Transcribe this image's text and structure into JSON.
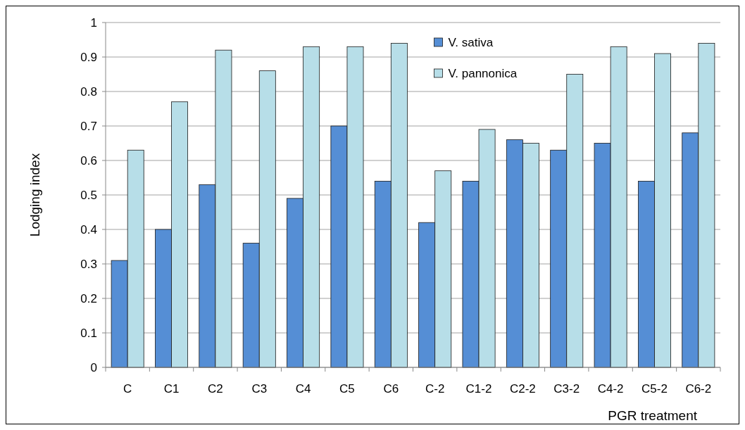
{
  "chart_data": {
    "type": "bar",
    "xlabel": "PGR treatment",
    "ylabel": "Lodging index",
    "categories": [
      "C",
      "C1",
      "C2",
      "C3",
      "C4",
      "C5",
      "C6",
      "C-2",
      "C1-2",
      "C2-2",
      "C3-2",
      "C4-2",
      "C5-2",
      "C6-2"
    ],
    "series": [
      {
        "name": "V. sativa",
        "color": "#558ed5",
        "values": [
          0.31,
          0.4,
          0.53,
          0.36,
          0.49,
          0.7,
          0.54,
          0.42,
          0.54,
          0.66,
          0.63,
          0.65,
          0.54,
          0.68
        ]
      },
      {
        "name": "V. pannonica",
        "color": "#b7dee8",
        "values": [
          0.63,
          0.77,
          0.92,
          0.86,
          0.93,
          0.93,
          0.94,
          0.57,
          0.69,
          0.65,
          0.85,
          0.93,
          0.91,
          0.94
        ]
      }
    ],
    "ylim": [
      0,
      1
    ],
    "yticks": [
      0,
      0.1,
      0.2,
      0.3,
      0.4,
      0.5,
      0.6,
      0.7,
      0.8,
      0.9,
      1
    ],
    "grid": "y",
    "legend": "top"
  }
}
